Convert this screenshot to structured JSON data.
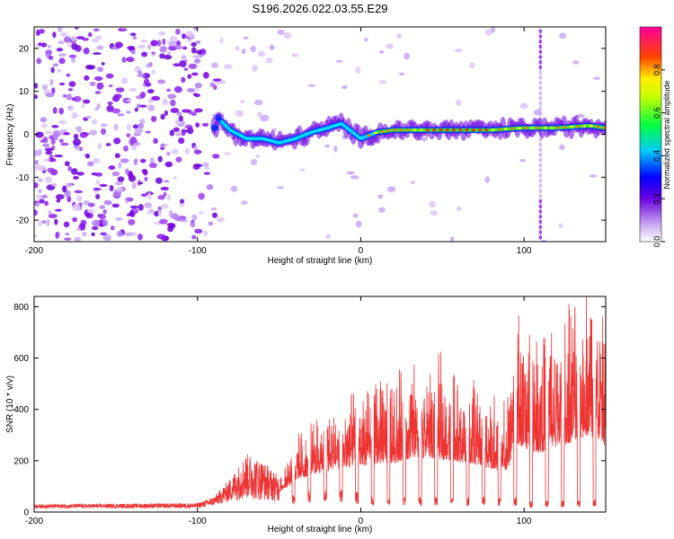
{
  "title": "S196.2026.022.03.55.E29",
  "chart_data": [
    {
      "type": "heatmap",
      "name": "spectrogram",
      "xlabel": "Height of straight line (km)",
      "ylabel": "Frequency (Hz)",
      "xlim": [
        -200,
        150
      ],
      "ylim": [
        -25,
        25
      ],
      "xticks": [
        -200,
        -100,
        0,
        100
      ],
      "xtick_labels": [
        "-200",
        "-100",
        "0",
        "100"
      ],
      "yticks": [
        -20,
        -10,
        0,
        10,
        20
      ],
      "ytick_labels": [
        "-20",
        "-10",
        "0",
        "10",
        "20"
      ],
      "colorbar": {
        "label": "Normalized spectral amplitude",
        "range": [
          0,
          1
        ],
        "ticks": [
          0.0,
          0.2,
          0.4,
          0.6,
          0.8
        ],
        "tick_labels": [
          "0.0",
          "0.2",
          "0.4",
          "0.6",
          "0.8"
        ]
      },
      "ridge": {
        "description_points_x": [
          -88,
          -80,
          -70,
          -60,
          -50,
          -40,
          -30,
          -20,
          -12,
          -5,
          0,
          10,
          20,
          40,
          60,
          80,
          100,
          120,
          140,
          150
        ],
        "frequency_y": [
          4,
          1,
          -1,
          -1,
          -2,
          -1,
          0.5,
          1.5,
          2.5,
          0.5,
          -1,
          0.5,
          1,
          1,
          1,
          1,
          1.5,
          1.5,
          2,
          1.5
        ]
      },
      "vertical_streak_x": 110
    },
    {
      "type": "line",
      "name": "snr",
      "xlabel": "Height of straight line (km)",
      "ylabel": "SNR (10 * v/v)",
      "xlim": [
        -200,
        150
      ],
      "ylim": [
        0,
        840
      ],
      "xticks": [
        -200,
        -100,
        0,
        100
      ],
      "xtick_labels": [
        "-200",
        "-100",
        "0",
        "100"
      ],
      "yticks": [
        0,
        200,
        400,
        600,
        800
      ],
      "ytick_labels": [
        "0",
        "200",
        "400",
        "600",
        "800"
      ],
      "series": [
        {
          "name": "SNR",
          "color": "#ee3333",
          "envelope_x": [
            -200,
            -100,
            -90,
            -80,
            -70,
            -60,
            -50,
            -40,
            -30,
            -20,
            -10,
            0,
            10,
            20,
            30,
            40,
            50,
            60,
            70,
            80,
            90,
            95,
            100,
            110,
            120,
            130,
            140,
            150
          ],
          "envelope_max": [
            30,
            35,
            60,
            130,
            230,
            200,
            140,
            250,
            300,
            350,
            380,
            420,
            450,
            470,
            500,
            520,
            510,
            480,
            450,
            400,
            380,
            690,
            640,
            600,
            650,
            720,
            800,
            650
          ],
          "envelope_min": [
            15,
            15,
            25,
            40,
            50,
            45,
            40,
            50,
            60,
            60,
            60,
            50,
            40,
            40,
            40,
            40,
            40,
            40,
            40,
            40,
            40,
            40,
            30,
            30,
            30,
            30,
            30,
            40
          ]
        }
      ]
    }
  ]
}
